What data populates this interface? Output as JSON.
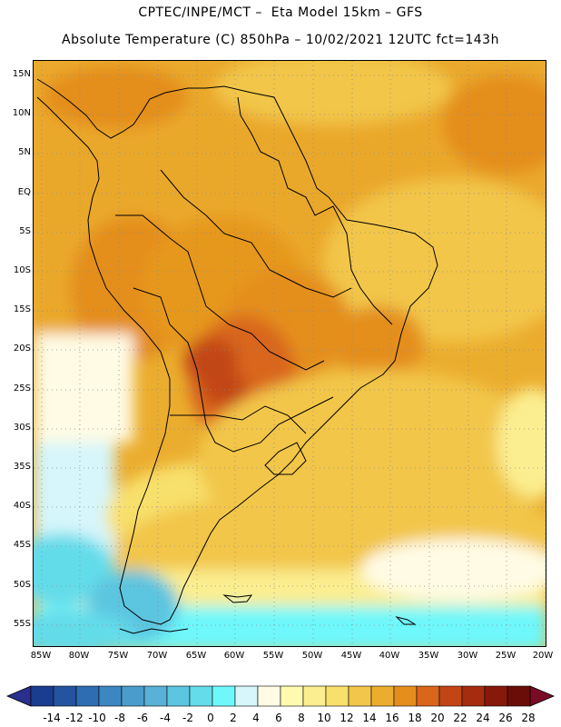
{
  "header": {
    "line1": "CPTEC/INPE/MCT –  Eta Model 15km – GFS",
    "line2": "Absolute Temperature (C) 850hPa – 10/02/2021 12UTC fct=143h"
  },
  "map": {
    "lat_labels": [
      "15N",
      "10N",
      "5N",
      "EQ",
      "5S",
      "10S",
      "15S",
      "20S",
      "25S",
      "30S",
      "35S",
      "40S",
      "45S",
      "50S",
      "55S"
    ],
    "lon_labels": [
      "85W",
      "80W",
      "75W",
      "70W",
      "65W",
      "60W",
      "55W",
      "50W",
      "45W",
      "40W",
      "35W",
      "30W",
      "25W",
      "20W"
    ]
  },
  "colorbar": {
    "labels": [
      "-14",
      "-12",
      "-10",
      "-8",
      "-6",
      "-4",
      "-2",
      "0",
      "2",
      "4",
      "6",
      "8",
      "10",
      "12",
      "14",
      "16",
      "18",
      "20",
      "22",
      "24",
      "26",
      "28"
    ],
    "colors": [
      "#1b3d8f",
      "#24549f",
      "#2e6db2",
      "#3c86c2",
      "#4a9ccb",
      "#58b1d6",
      "#5cc5e0",
      "#64dcea",
      "#6ef8fb",
      "#d6f6fb",
      "#fffbe4",
      "#fefab0",
      "#fbee90",
      "#f8e06c",
      "#f2c64a",
      "#ebad2e",
      "#e48e1e",
      "#d9661a",
      "#c24615",
      "#a52c0f",
      "#87190b",
      "#6a0d08"
    ],
    "low_color": "#2a2f8e",
    "high_color": "#7a0b25"
  }
}
